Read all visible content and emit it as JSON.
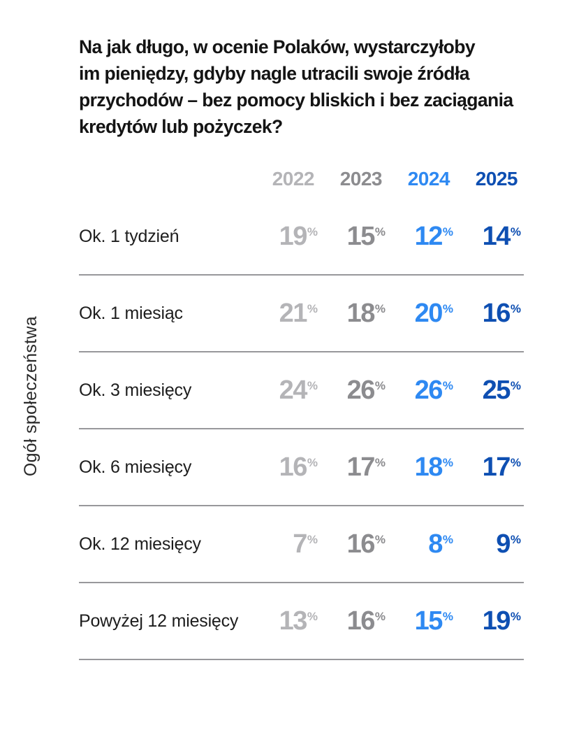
{
  "question_lines": [
    "Na jak długo, w ocenie Polaków, wystarczyłoby",
    "im pieniędzy, gdyby nagle utracili swoje źródła",
    "przychodów – bez pomocy bliskich i bez zaciągania",
    "kredytów lub pożyczek?"
  ],
  "group_label": "Ogół społeczeństwa",
  "unit": "%",
  "chart_data": {
    "type": "table",
    "title": "Na jak długo, w ocenie Polaków, wystarczyłoby im pieniędzy, gdyby nagle utracili swoje źródła przychodów – bez pomocy bliskich i bez zaciągania kredytów lub pożyczek?",
    "group": "Ogół społeczeństwa",
    "unit": "%",
    "categories": [
      "Ok. 1 tydzień",
      "Ok. 1 miesiąc",
      "Ok. 3 miesięcy",
      "Ok. 6 miesięcy",
      "Ok. 12 miesięcy",
      "Powyżej 12 miesięcy"
    ],
    "series": [
      {
        "name": "2022",
        "color": "#b4b4b7",
        "values": [
          19,
          21,
          24,
          16,
          7,
          13
        ]
      },
      {
        "name": "2023",
        "color": "#8c8c8f",
        "values": [
          15,
          18,
          26,
          17,
          16,
          16
        ]
      },
      {
        "name": "2024",
        "color": "#2e89f2",
        "values": [
          12,
          20,
          26,
          18,
          8,
          15
        ]
      },
      {
        "name": "2025",
        "color": "#0e4fb2",
        "values": [
          14,
          16,
          25,
          17,
          9,
          19
        ]
      }
    ]
  }
}
